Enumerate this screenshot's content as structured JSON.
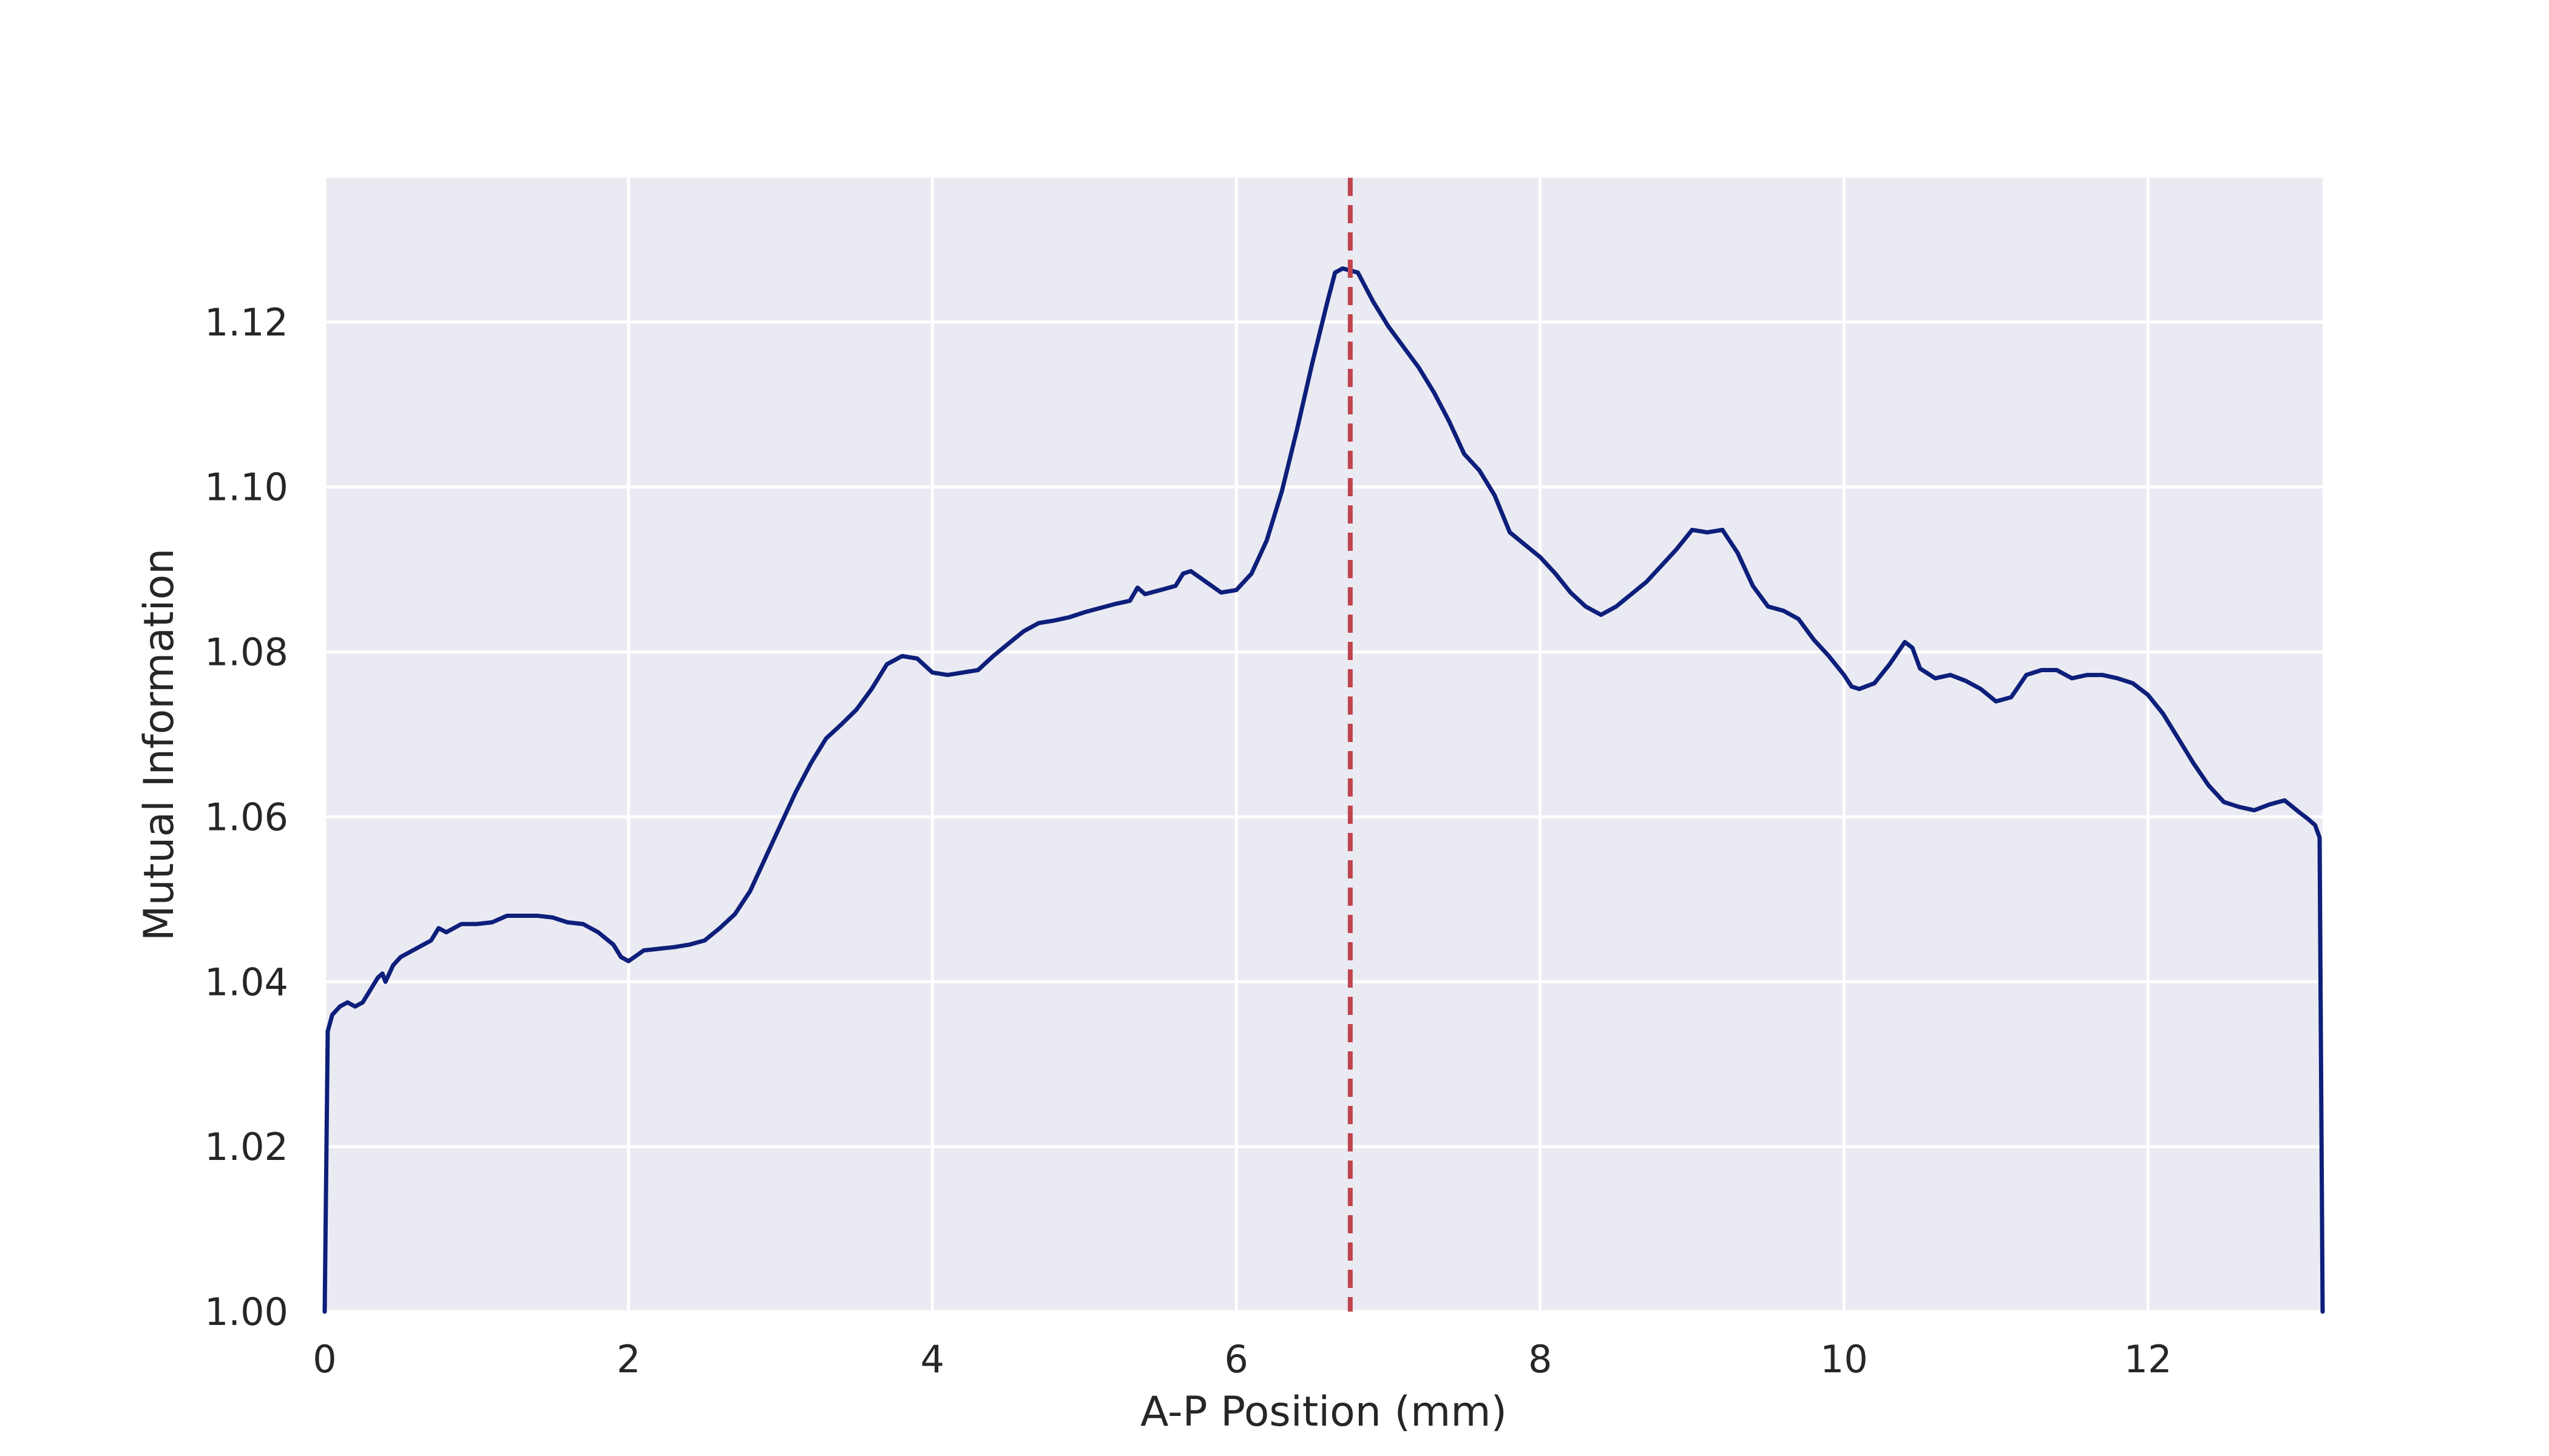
{
  "chart_data": {
    "type": "line",
    "title": "",
    "xlabel": "A-P Position (mm)",
    "ylabel": "Mutual Information",
    "xlim": [
      0,
      13.15
    ],
    "ylim": [
      1.0,
      1.1375
    ],
    "xticks": [
      0,
      2,
      4,
      6,
      8,
      10,
      12
    ],
    "xtick_labels": [
      "0",
      "2",
      "4",
      "6",
      "8",
      "10",
      "12"
    ],
    "yticks": [
      1.0,
      1.02,
      1.04,
      1.06,
      1.08,
      1.1,
      1.12
    ],
    "ytick_labels": [
      "1.00",
      "1.02",
      "1.04",
      "1.06",
      "1.08",
      "1.10",
      "1.12"
    ],
    "grid": true,
    "background": "#EAEAF2",
    "grid_color": "#FFFFFF",
    "series": [
      {
        "color": "#0D1F7A",
        "points": [
          [
            0.0,
            1.0
          ],
          [
            0.02,
            1.034
          ],
          [
            0.05,
            1.036
          ],
          [
            0.1,
            1.037
          ],
          [
            0.15,
            1.0375
          ],
          [
            0.2,
            1.037
          ],
          [
            0.25,
            1.0375
          ],
          [
            0.3,
            1.039
          ],
          [
            0.35,
            1.0405
          ],
          [
            0.38,
            1.041
          ],
          [
            0.4,
            1.04
          ],
          [
            0.45,
            1.042
          ],
          [
            0.5,
            1.043
          ],
          [
            0.55,
            1.0435
          ],
          [
            0.6,
            1.044
          ],
          [
            0.65,
            1.0445
          ],
          [
            0.7,
            1.045
          ],
          [
            0.75,
            1.0465
          ],
          [
            0.8,
            1.046
          ],
          [
            0.85,
            1.0465
          ],
          [
            0.9,
            1.047
          ],
          [
            1.0,
            1.047
          ],
          [
            1.1,
            1.0472
          ],
          [
            1.2,
            1.048
          ],
          [
            1.3,
            1.048
          ],
          [
            1.4,
            1.048
          ],
          [
            1.5,
            1.0478
          ],
          [
            1.6,
            1.0472
          ],
          [
            1.7,
            1.047
          ],
          [
            1.8,
            1.046
          ],
          [
            1.9,
            1.0445
          ],
          [
            1.95,
            1.043
          ],
          [
            2.0,
            1.0425
          ],
          [
            2.1,
            1.0438
          ],
          [
            2.2,
            1.044
          ],
          [
            2.3,
            1.0442
          ],
          [
            2.4,
            1.0445
          ],
          [
            2.5,
            1.045
          ],
          [
            2.6,
            1.0465
          ],
          [
            2.7,
            1.0482
          ],
          [
            2.8,
            1.051
          ],
          [
            2.9,
            1.055
          ],
          [
            3.0,
            1.059
          ],
          [
            3.1,
            1.063
          ],
          [
            3.2,
            1.0665
          ],
          [
            3.3,
            1.0695
          ],
          [
            3.4,
            1.0712
          ],
          [
            3.5,
            1.073
          ],
          [
            3.6,
            1.0755
          ],
          [
            3.7,
            1.0785
          ],
          [
            3.8,
            1.0795
          ],
          [
            3.9,
            1.0792
          ],
          [
            4.0,
            1.0775
          ],
          [
            4.1,
            1.0772
          ],
          [
            4.2,
            1.0775
          ],
          [
            4.3,
            1.0778
          ],
          [
            4.4,
            1.0795
          ],
          [
            4.5,
            1.081
          ],
          [
            4.6,
            1.0825
          ],
          [
            4.7,
            1.0835
          ],
          [
            4.8,
            1.0838
          ],
          [
            4.9,
            1.0842
          ],
          [
            5.0,
            1.0848
          ],
          [
            5.1,
            1.0853
          ],
          [
            5.2,
            1.0858
          ],
          [
            5.3,
            1.0862
          ],
          [
            5.35,
            1.0878
          ],
          [
            5.4,
            1.087
          ],
          [
            5.5,
            1.0875
          ],
          [
            5.6,
            1.088
          ],
          [
            5.65,
            1.0895
          ],
          [
            5.7,
            1.0898
          ],
          [
            5.8,
            1.0885
          ],
          [
            5.9,
            1.0872
          ],
          [
            6.0,
            1.0875
          ],
          [
            6.1,
            1.0895
          ],
          [
            6.2,
            1.0935
          ],
          [
            6.3,
            1.0995
          ],
          [
            6.4,
            1.107
          ],
          [
            6.5,
            1.115
          ],
          [
            6.6,
            1.1225
          ],
          [
            6.65,
            1.126
          ],
          [
            6.7,
            1.1265
          ],
          [
            6.8,
            1.126
          ],
          [
            6.9,
            1.1225
          ],
          [
            7.0,
            1.1195
          ],
          [
            7.1,
            1.117
          ],
          [
            7.2,
            1.1145
          ],
          [
            7.3,
            1.1115
          ],
          [
            7.4,
            1.108
          ],
          [
            7.5,
            1.104
          ],
          [
            7.6,
            1.102
          ],
          [
            7.7,
            1.099
          ],
          [
            7.8,
            1.0945
          ],
          [
            7.9,
            1.093
          ],
          [
            8.0,
            1.0915
          ],
          [
            8.1,
            1.0895
          ],
          [
            8.2,
            1.0872
          ],
          [
            8.3,
            1.0855
          ],
          [
            8.4,
            1.0845
          ],
          [
            8.5,
            1.0855
          ],
          [
            8.6,
            1.087
          ],
          [
            8.7,
            1.0885
          ],
          [
            8.8,
            1.0905
          ],
          [
            8.9,
            1.0925
          ],
          [
            9.0,
            1.0948
          ],
          [
            9.1,
            1.0945
          ],
          [
            9.2,
            1.0948
          ],
          [
            9.3,
            1.092
          ],
          [
            9.4,
            1.088
          ],
          [
            9.5,
            1.0855
          ],
          [
            9.6,
            1.085
          ],
          [
            9.7,
            1.084
          ],
          [
            9.8,
            1.0815
          ],
          [
            9.9,
            1.0795
          ],
          [
            10.0,
            1.0772
          ],
          [
            10.05,
            1.0758
          ],
          [
            10.1,
            1.0755
          ],
          [
            10.2,
            1.0762
          ],
          [
            10.3,
            1.0785
          ],
          [
            10.4,
            1.0812
          ],
          [
            10.45,
            1.0805
          ],
          [
            10.5,
            1.078
          ],
          [
            10.6,
            1.0768
          ],
          [
            10.7,
            1.0772
          ],
          [
            10.8,
            1.0765
          ],
          [
            10.9,
            1.0755
          ],
          [
            11.0,
            1.074
          ],
          [
            11.1,
            1.0745
          ],
          [
            11.2,
            1.0772
          ],
          [
            11.3,
            1.0778
          ],
          [
            11.4,
            1.0778
          ],
          [
            11.5,
            1.0768
          ],
          [
            11.6,
            1.0772
          ],
          [
            11.7,
            1.0772
          ],
          [
            11.8,
            1.0768
          ],
          [
            11.9,
            1.0762
          ],
          [
            12.0,
            1.0748
          ],
          [
            12.1,
            1.0725
          ],
          [
            12.2,
            1.0695
          ],
          [
            12.3,
            1.0665
          ],
          [
            12.4,
            1.0638
          ],
          [
            12.5,
            1.0618
          ],
          [
            12.6,
            1.0612
          ],
          [
            12.7,
            1.0608
          ],
          [
            12.8,
            1.0615
          ],
          [
            12.9,
            1.062
          ],
          [
            13.0,
            1.0605
          ],
          [
            13.05,
            1.0598
          ],
          [
            13.1,
            1.059
          ],
          [
            13.13,
            1.0575
          ],
          [
            13.15,
            1.0
          ]
        ]
      }
    ],
    "annotations": [
      {
        "type": "vline",
        "x": 6.75,
        "style": "dashed",
        "color": "#C0434D"
      }
    ]
  }
}
